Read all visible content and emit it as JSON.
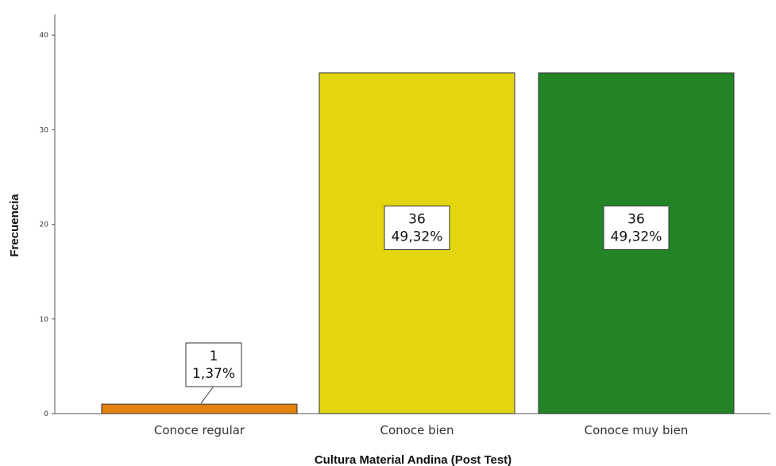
{
  "chart_data": {
    "type": "bar",
    "xlabel": "Cultura Material Andina (Post Test)",
    "ylabel": "Frecuencia",
    "ylim": [
      0,
      41
    ],
    "yticks": [
      "0",
      "10",
      "20",
      "30",
      "40"
    ],
    "grid": false,
    "categories": [
      "Conoce regular",
      "Conoce bien",
      "Conoce muy bien"
    ],
    "values": [
      1,
      36,
      36
    ],
    "percent_labels": [
      "1,37%",
      "49,32%",
      "49,32%"
    ],
    "count_labels": [
      "1",
      "36",
      "36"
    ],
    "colors": [
      "#e2810e",
      "#e3d60f",
      "#228427"
    ]
  }
}
